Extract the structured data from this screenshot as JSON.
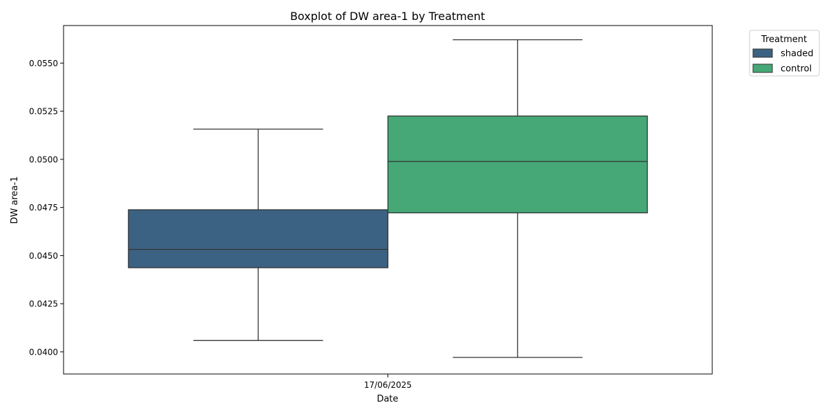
{
  "chart_data": {
    "type": "boxplot",
    "title": "Boxplot of DW area-1 by Treatment",
    "xlabel": "Date",
    "ylabel": "DW area-1",
    "categories": [
      "17/06/2025"
    ],
    "ylim": [
      0.03885,
      0.05695
    ],
    "yticks": [
      0.04,
      0.0425,
      0.045,
      0.0475,
      0.05,
      0.0525,
      0.055
    ],
    "ytick_labels": [
      "0.0400",
      "0.0425",
      "0.0450",
      "0.0475",
      "0.0500",
      "0.0525",
      "0.0550"
    ],
    "grid": false,
    "legend": {
      "title": "Treatment",
      "placement": "outside-top-right"
    },
    "series": [
      {
        "name": "shaded",
        "color": "#3b6282",
        "whisker_low": 0.04059,
        "q1": 0.04437,
        "median": 0.04532,
        "q3": 0.04738,
        "whisker_high": 0.05157
      },
      {
        "name": "control",
        "color": "#45a876",
        "whisker_low": 0.03971,
        "q1": 0.04722,
        "median": 0.04989,
        "q3": 0.05225,
        "whisker_high": 0.05621
      }
    ]
  }
}
